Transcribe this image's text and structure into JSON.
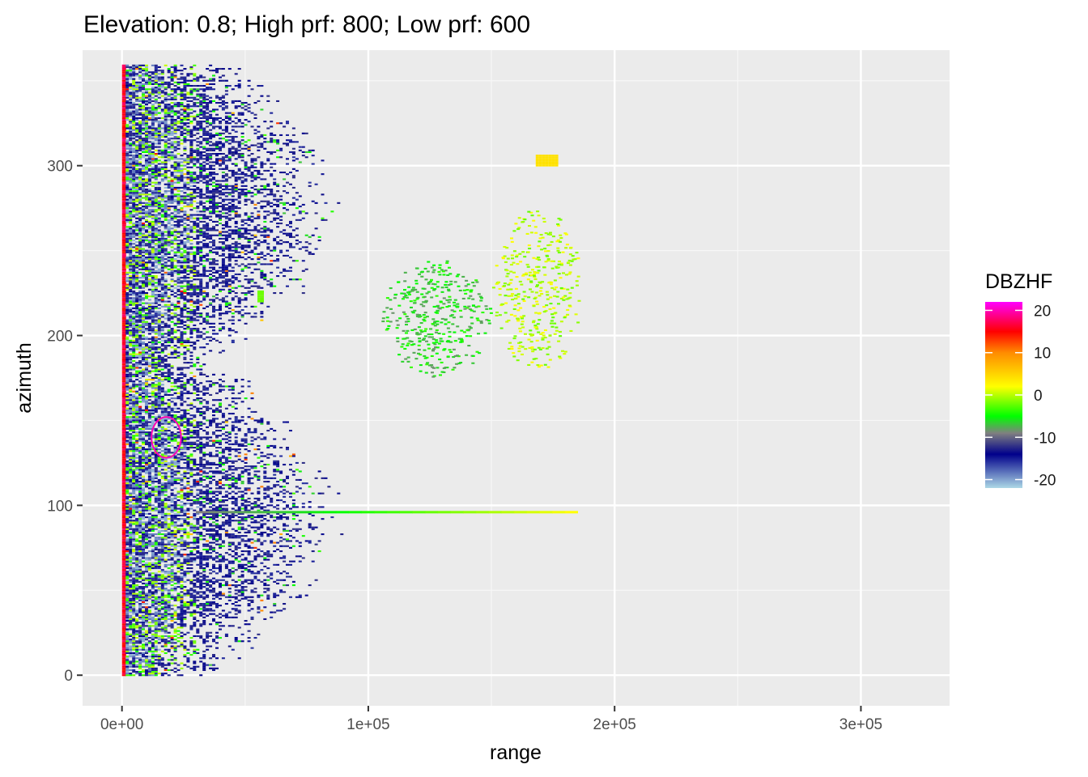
{
  "chart_data": {
    "type": "heatmap",
    "title": "Elevation: 0.8; High prf: 800; Low prf: 600",
    "xlabel": "range",
    "ylabel": "azimuth",
    "xlim": [
      -16000,
      336000
    ],
    "ylim": [
      -18,
      368
    ],
    "x_ticks": [
      0,
      100000,
      200000,
      300000
    ],
    "x_tick_labels": [
      "0e+00",
      "1e+05",
      "2e+05",
      "3e+05"
    ],
    "y_ticks": [
      0,
      100,
      200,
      300
    ],
    "y_tick_labels": [
      "0",
      "100",
      "200",
      "300"
    ],
    "grid": true,
    "legend": {
      "title": "DBZHF",
      "position": "right",
      "range": [
        -22,
        22
      ],
      "ticks": [
        20,
        10,
        0,
        -10,
        -20
      ],
      "tick_labels": [
        "20",
        "10",
        "0",
        "-10",
        "-20"
      ],
      "color_stops": [
        {
          "value": -22,
          "color": "#add8e6"
        },
        {
          "value": -14,
          "color": "#00008b"
        },
        {
          "value": -9,
          "color": "#808080"
        },
        {
          "value": -5,
          "color": "#00ff00"
        },
        {
          "value": 2,
          "color": "#ffff00"
        },
        {
          "value": 10,
          "color": "#ff8c00"
        },
        {
          "value": 15,
          "color": "#ff0000"
        },
        {
          "value": 22,
          "color": "#ff00ff"
        }
      ]
    },
    "features": [
      {
        "kind": "near_range_band",
        "range": [
          0,
          2000
        ],
        "azimuth": [
          0,
          360
        ],
        "value": 18
      },
      {
        "kind": "ground_clutter",
        "range": [
          0,
          95000
        ],
        "azimuth": [
          0,
          360
        ],
        "value": -16
      },
      {
        "kind": "spoke",
        "azimuth": 96,
        "range": [
          30000,
          185000
        ],
        "value_start": -9,
        "value_end": 2
      },
      {
        "kind": "echo_cluster",
        "range": [
          105000,
          150000
        ],
        "azimuth": [
          175,
          245
        ],
        "value": -6
      },
      {
        "kind": "echo_cluster",
        "range": [
          150000,
          187000
        ],
        "azimuth": [
          180,
          275
        ],
        "value": 0
      },
      {
        "kind": "spot",
        "range": [
          55000,
          57000
        ],
        "azimuth": [
          220,
          226
        ],
        "value": -2
      },
      {
        "kind": "spot",
        "range": [
          168000,
          176000
        ],
        "azimuth": [
          300,
          306
        ],
        "value": 4
      },
      {
        "kind": "ring",
        "center_range": [
          18000,
          140
        ],
        "radius": [
          6000,
          12
        ],
        "value": 20
      }
    ]
  }
}
